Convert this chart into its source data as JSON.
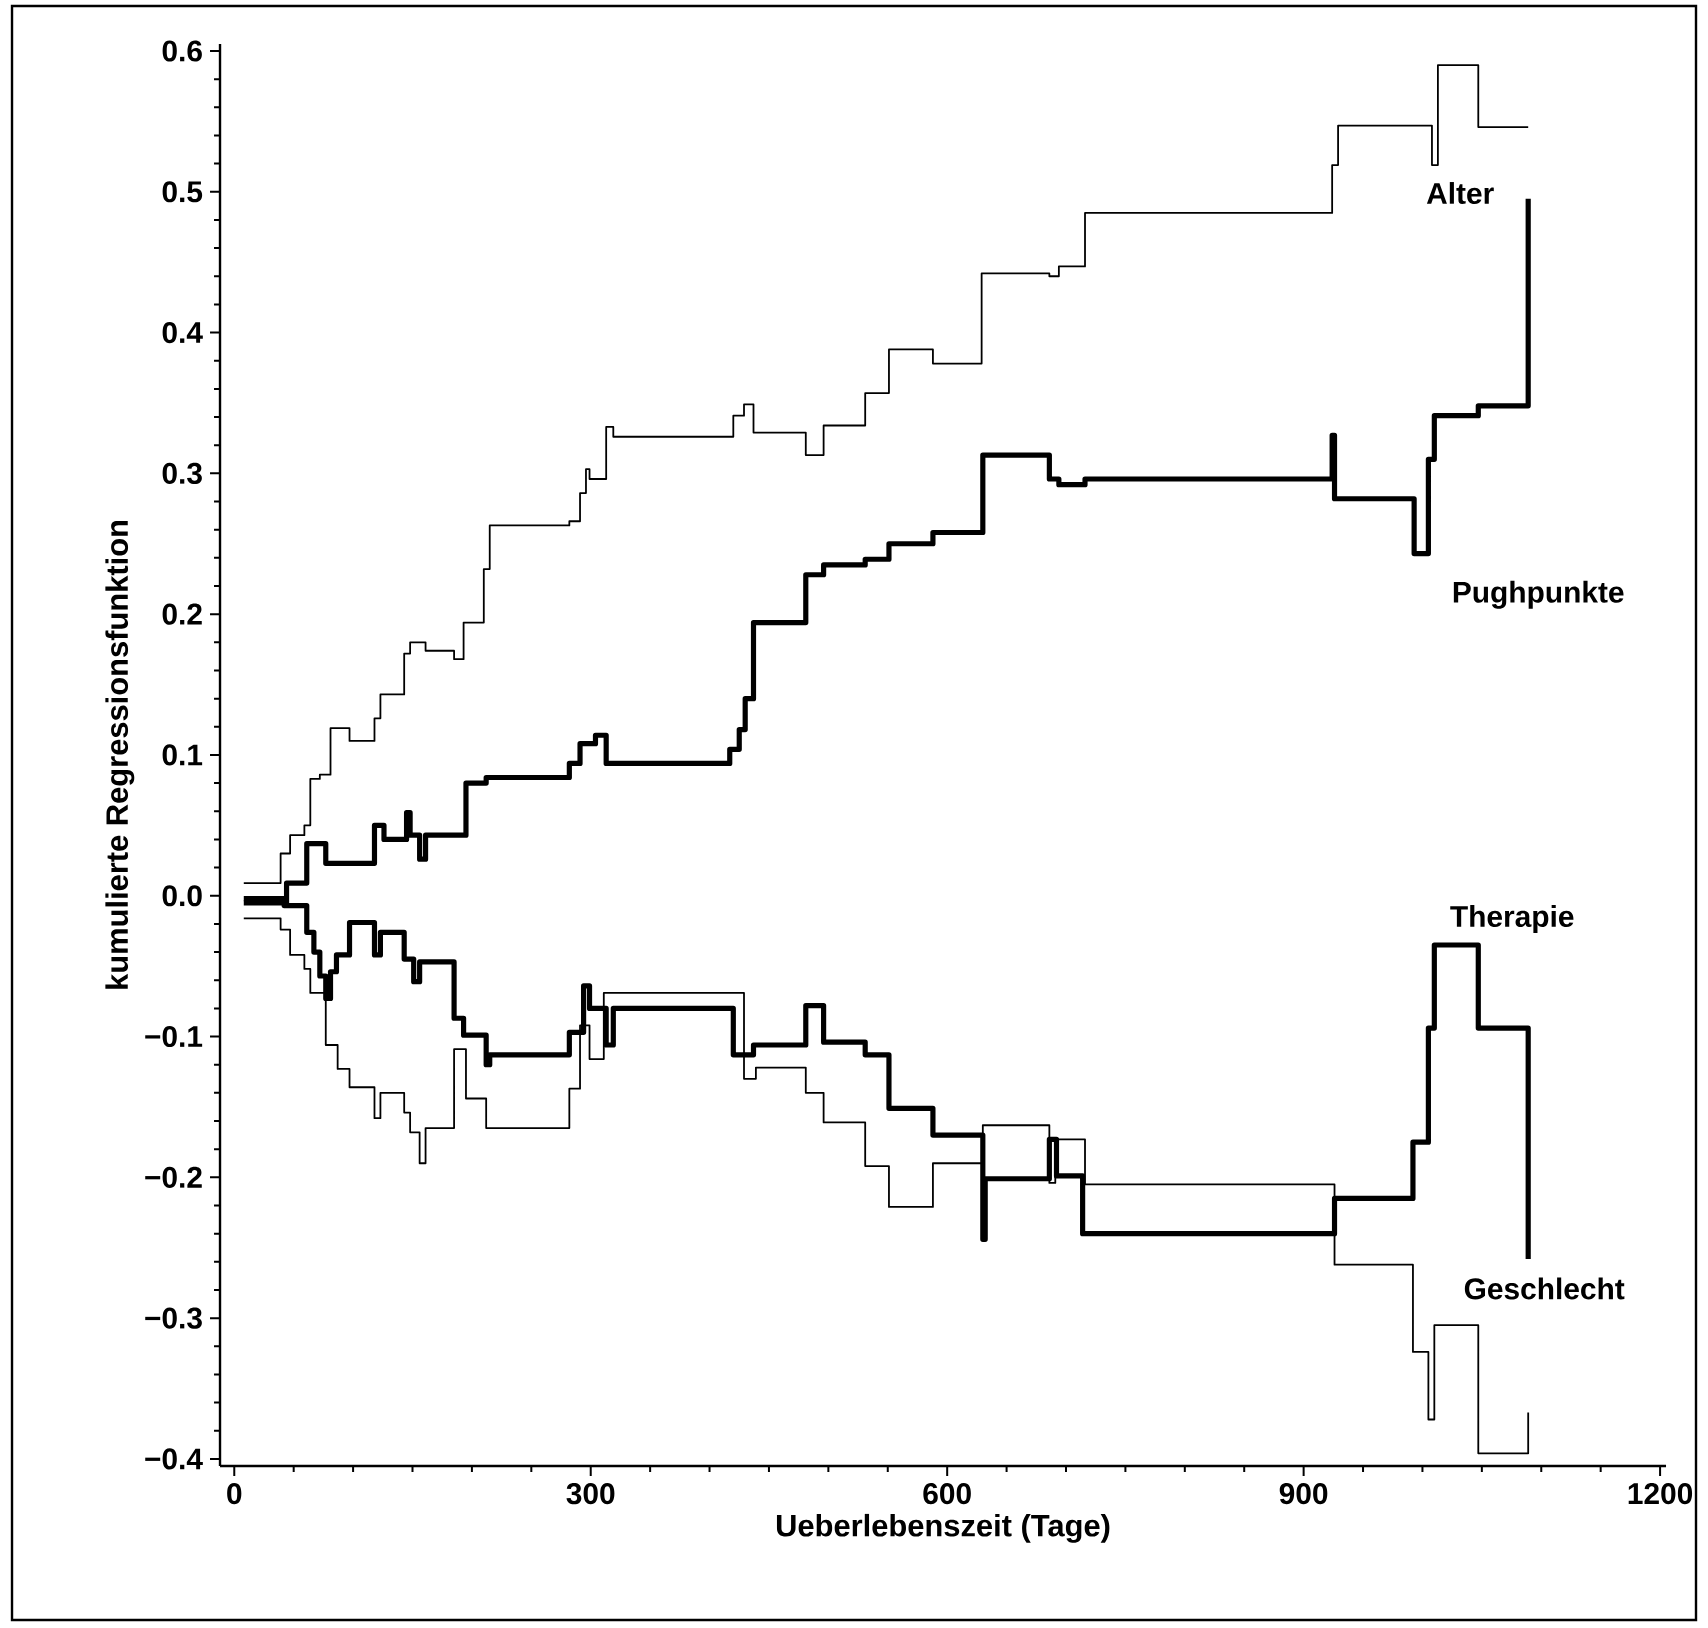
{
  "chart_data": {
    "type": "step",
    "xlabel": "Ueberlebenszeit (Tage)",
    "ylabel": "kumulierte Regressionsfunktion",
    "xlim": [
      -12,
      1205
    ],
    "ylim": [
      -0.405,
      0.605
    ],
    "xticks": [
      0,
      300,
      600,
      900,
      1200
    ],
    "yticks": [
      {
        "value": -0.4,
        "label": "−0.4"
      },
      {
        "value": -0.3,
        "label": "−0.3"
      },
      {
        "value": -0.2,
        "label": "−0.2"
      },
      {
        "value": -0.1,
        "label": "−0.1"
      },
      {
        "value": 0,
        "label": "0.0"
      },
      {
        "value": 0.1,
        "label": "0.1"
      },
      {
        "value": 0.2,
        "label": "0.2"
      },
      {
        "value": 0.3,
        "label": "0.3"
      },
      {
        "value": 0.4,
        "label": "0.4"
      },
      {
        "value": 0.5,
        "label": "0.5"
      },
      {
        "value": 0.6,
        "label": "0.6"
      }
    ],
    "marker": "none",
    "line_style": "solid",
    "series": [
      {
        "name": "Alter",
        "color": "#000000",
        "x": [
          8,
          39,
          47,
          59,
          64,
          72,
          81,
          97,
          118,
          123,
          143,
          148,
          161,
          185,
          193,
          210,
          215,
          282,
          291,
          296,
          299,
          313,
          319,
          420,
          429,
          437,
          481,
          496,
          531,
          551,
          588,
          629,
          686,
          694,
          716,
          924,
          929,
          1008,
          1013,
          1047,
          1089
        ],
        "values": [
          0.009,
          0.03,
          0.043,
          0.05,
          0.083,
          0.086,
          0.119,
          0.11,
          0.126,
          0.143,
          0.172,
          0.18,
          0.174,
          0.168,
          0.194,
          0.232,
          0.263,
          0.266,
          0.286,
          0.303,
          0.296,
          0.333,
          0.326,
          0.341,
          0.349,
          0.329,
          0.313,
          0.334,
          0.357,
          0.388,
          0.378,
          0.442,
          0.44,
          0.447,
          0.485,
          0.519,
          0.547,
          0.519,
          0.59,
          0.546,
          0.546
        ]
      },
      {
        "name": "Pughpunkte",
        "color": "#000000",
        "x": [
          8,
          44,
          61,
          77,
          118,
          126,
          145,
          148,
          156,
          161,
          195,
          212,
          282,
          291,
          304,
          313,
          417,
          425,
          430,
          437,
          481,
          496,
          531,
          551,
          588,
          630,
          686,
          694,
          716,
          924,
          926,
          993,
          1005,
          1010,
          1047,
          1089
        ],
        "values": [
          -0.005,
          0.009,
          0.037,
          0.023,
          0.05,
          0.04,
          0.059,
          0.043,
          0.026,
          0.043,
          0.08,
          0.084,
          0.094,
          0.108,
          0.114,
          0.094,
          0.104,
          0.118,
          0.14,
          0.194,
          0.228,
          0.235,
          0.239,
          0.25,
          0.258,
          0.313,
          0.296,
          0.292,
          0.296,
          0.327,
          0.282,
          0.243,
          0.31,
          0.341,
          0.348,
          0.495
        ]
      },
      {
        "name": "Therapie",
        "color": "#000000",
        "x": [
          8,
          42,
          61,
          67,
          72,
          77,
          81,
          86,
          97,
          118,
          123,
          143,
          151,
          156,
          185,
          193,
          212,
          215,
          282,
          294,
          299,
          313,
          319,
          420,
          437,
          481,
          496,
          531,
          551,
          588,
          630,
          632,
          686,
          692,
          714,
          926,
          992,
          1005,
          1010,
          1047,
          1089
        ],
        "values": [
          -0.002,
          -0.007,
          -0.026,
          -0.04,
          -0.057,
          -0.073,
          -0.054,
          -0.042,
          -0.019,
          -0.042,
          -0.026,
          -0.045,
          -0.061,
          -0.047,
          -0.087,
          -0.099,
          -0.12,
          -0.113,
          -0.097,
          -0.064,
          -0.08,
          -0.106,
          -0.08,
          -0.113,
          -0.106,
          -0.078,
          -0.104,
          -0.113,
          -0.151,
          -0.17,
          -0.244,
          -0.201,
          -0.173,
          -0.199,
          -0.24,
          -0.215,
          -0.175,
          -0.094,
          -0.035,
          -0.094,
          -0.258
        ]
      },
      {
        "name": "Geschlecht",
        "color": "#000000",
        "x": [
          8,
          39,
          47,
          59,
          64,
          77,
          87,
          97,
          118,
          123,
          143,
          148,
          156,
          161,
          185,
          195,
          212,
          282,
          291,
          299,
          311,
          429,
          439,
          481,
          496,
          531,
          551,
          588,
          630,
          686,
          691,
          716,
          926,
          992,
          1005,
          1010,
          1047,
          1089
        ],
        "values": [
          -0.016,
          -0.024,
          -0.042,
          -0.052,
          -0.069,
          -0.106,
          -0.123,
          -0.136,
          -0.158,
          -0.14,
          -0.154,
          -0.168,
          -0.19,
          -0.165,
          -0.109,
          -0.144,
          -0.165,
          -0.137,
          -0.092,
          -0.116,
          -0.069,
          -0.13,
          -0.122,
          -0.14,
          -0.161,
          -0.192,
          -0.221,
          -0.19,
          -0.163,
          -0.204,
          -0.173,
          -0.205,
          -0.262,
          -0.324,
          -0.372,
          -0.305,
          -0.396,
          -0.367
        ]
      }
    ]
  }
}
